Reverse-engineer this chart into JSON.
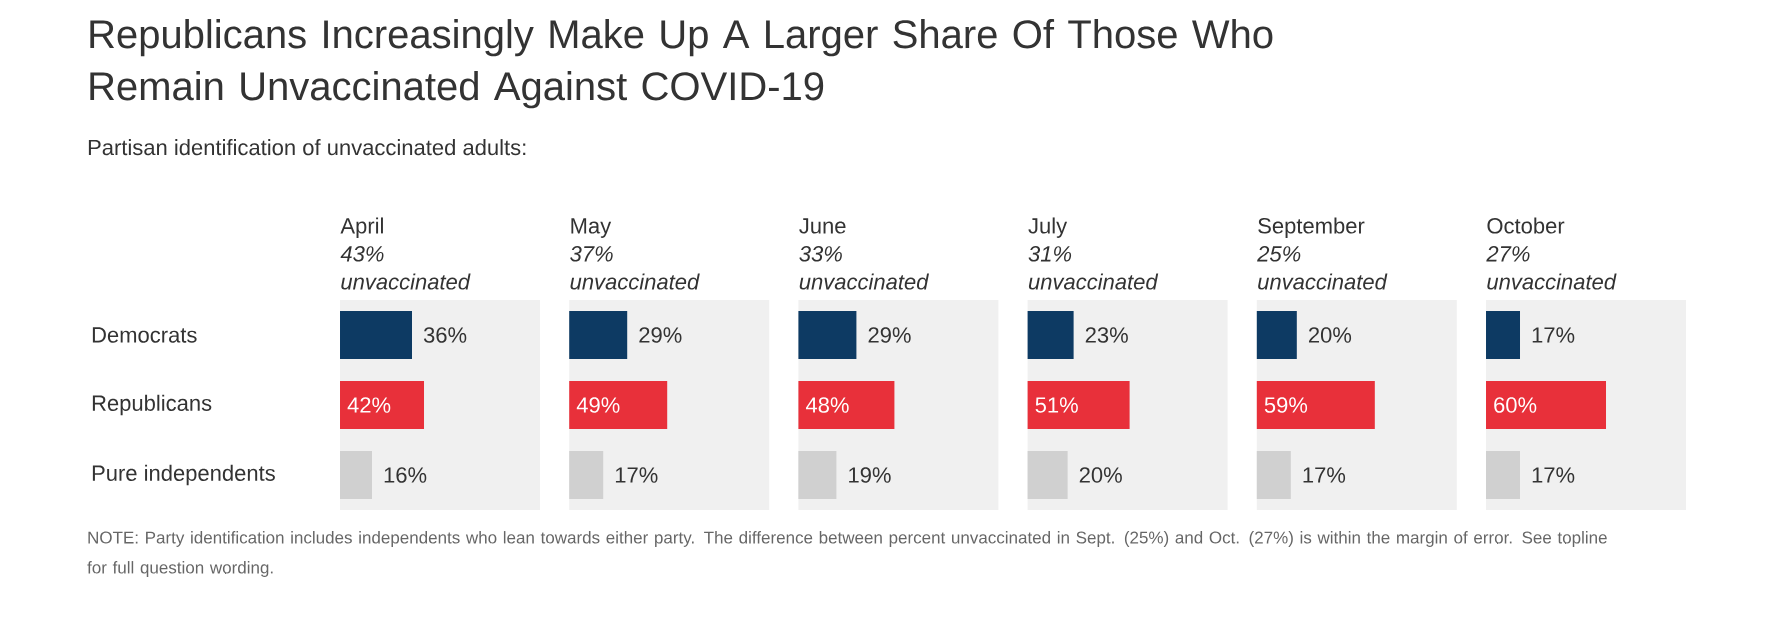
{
  "chart_data": [
    {
      "type": "other",
      "title": "Republicans Increasingly Make Up A Larger Share Of Those Who Remain Unvaccinated Against COVID-19",
      "subtitle": "Partisan identification of unvaccinated adults:",
      "annotations": [
        "NOTE: Party identification includes independents who lean towards either party. The difference between percent unvaccinated in Sept. (25%) and Oct. (27%) is within the margin of error. See topline for full question wording."
      ]
    },
    {
      "type": "bar",
      "orientation": "horizontal",
      "title": "April",
      "subtitle": "43% unvaccinated",
      "categories": [
        "Democrats",
        "Republicans",
        "Pure independents"
      ],
      "values": [
        36,
        42,
        16
      ],
      "value_labels": [
        "36%",
        "42%",
        "16%"
      ],
      "colors": [
        "#0d3a63",
        "#e8303a",
        "#d0d0d0"
      ],
      "xlim": [
        0,
        100
      ],
      "tick_labels": "y"
    },
    {
      "type": "bar",
      "orientation": "horizontal",
      "title": "May",
      "subtitle": "37% unvaccinated",
      "categories": [
        null,
        null,
        null
      ],
      "values": [
        29,
        49,
        17
      ],
      "value_labels": [
        "29%",
        "49%",
        "17%"
      ],
      "colors": [
        "#0d3a63",
        "#e8303a",
        "#d0d0d0"
      ],
      "xlim": [
        0,
        100
      ]
    },
    {
      "type": "bar",
      "orientation": "horizontal",
      "title": "June",
      "subtitle": "33% unvaccinated",
      "categories": [
        null,
        null,
        null
      ],
      "values": [
        29,
        48,
        19
      ],
      "value_labels": [
        "29%",
        "48%",
        "19%"
      ],
      "colors": [
        "#0d3a63",
        "#e8303a",
        "#d0d0d0"
      ],
      "xlim": [
        0,
        100
      ]
    },
    {
      "type": "bar",
      "orientation": "horizontal",
      "title": "July",
      "subtitle": "31% unvaccinated",
      "categories": [
        null,
        null,
        null
      ],
      "values": [
        23,
        51,
        20
      ],
      "value_labels": [
        "23%",
        "51%",
        "20%"
      ],
      "colors": [
        "#0d3a63",
        "#e8303a",
        "#d0d0d0"
      ],
      "xlim": [
        0,
        100
      ]
    },
    {
      "type": "bar",
      "orientation": "horizontal",
      "title": "September",
      "subtitle": "25% unvaccinated",
      "categories": [
        null,
        null,
        null
      ],
      "values": [
        20,
        59,
        17
      ],
      "value_labels": [
        "20%",
        "59%",
        "17%"
      ],
      "colors": [
        "#0d3a63",
        "#e8303a",
        "#d0d0d0"
      ],
      "xlim": [
        0,
        100
      ]
    },
    {
      "type": "bar",
      "orientation": "horizontal",
      "title": "October",
      "subtitle": "27% unvaccinated",
      "categories": [
        null,
        null,
        null
      ],
      "values": [
        17,
        60,
        17
      ],
      "value_labels": [
        "17%",
        "60%",
        "17%"
      ],
      "colors": [
        "#0d3a63",
        "#e8303a",
        "#d0d0d0"
      ],
      "xlim": [
        0,
        100
      ]
    }
  ]
}
